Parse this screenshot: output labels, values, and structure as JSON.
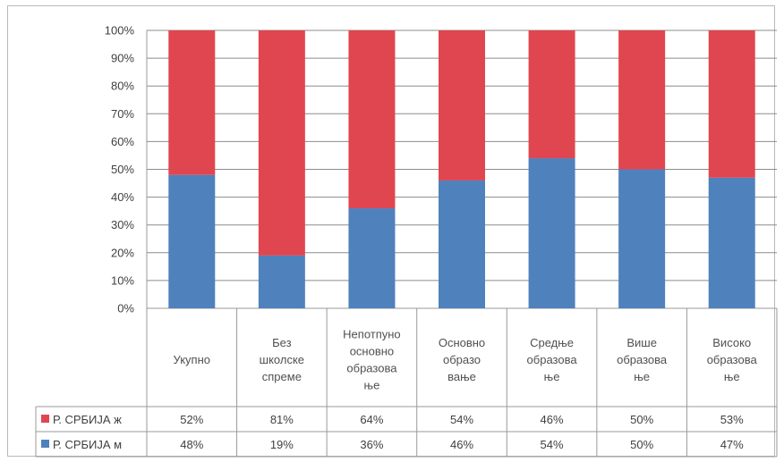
{
  "chart_data": {
    "type": "bar",
    "stacked": true,
    "normalized": true,
    "categories": [
      [
        "Укупно"
      ],
      [
        "Без",
        "школске",
        "спреме"
      ],
      [
        "Непотпуно",
        "основно",
        "образова",
        "ње"
      ],
      [
        "Основно",
        "образо",
        "вање"
      ],
      [
        "Средње",
        "образова",
        "ње"
      ],
      [
        "Више",
        "образова",
        "ње"
      ],
      [
        "Високо",
        "образова",
        "ње"
      ]
    ],
    "series": [
      {
        "name": "Р. СРБИЈА м",
        "color": "#4f81bd",
        "values": [
          48,
          19,
          36,
          46,
          54,
          50,
          47
        ],
        "labels": [
          "48%",
          "19%",
          "36%",
          "46%",
          "54%",
          "50%",
          "47%"
        ]
      },
      {
        "name": "Р. СРБИЈА ж",
        "color": "#e0464f",
        "values": [
          52,
          81,
          64,
          54,
          46,
          50,
          53
        ],
        "labels": [
          "52%",
          "81%",
          "64%",
          "54%",
          "46%",
          "50%",
          "53%"
        ]
      }
    ],
    "y_ticks": [
      "0%",
      "10%",
      "20%",
      "30%",
      "40%",
      "50%",
      "60%",
      "70%",
      "80%",
      "90%",
      "100%"
    ],
    "ylim": [
      0,
      100
    ],
    "grid": true,
    "legend": "data-table-rows",
    "table_row_order": [
      1,
      0
    ]
  }
}
